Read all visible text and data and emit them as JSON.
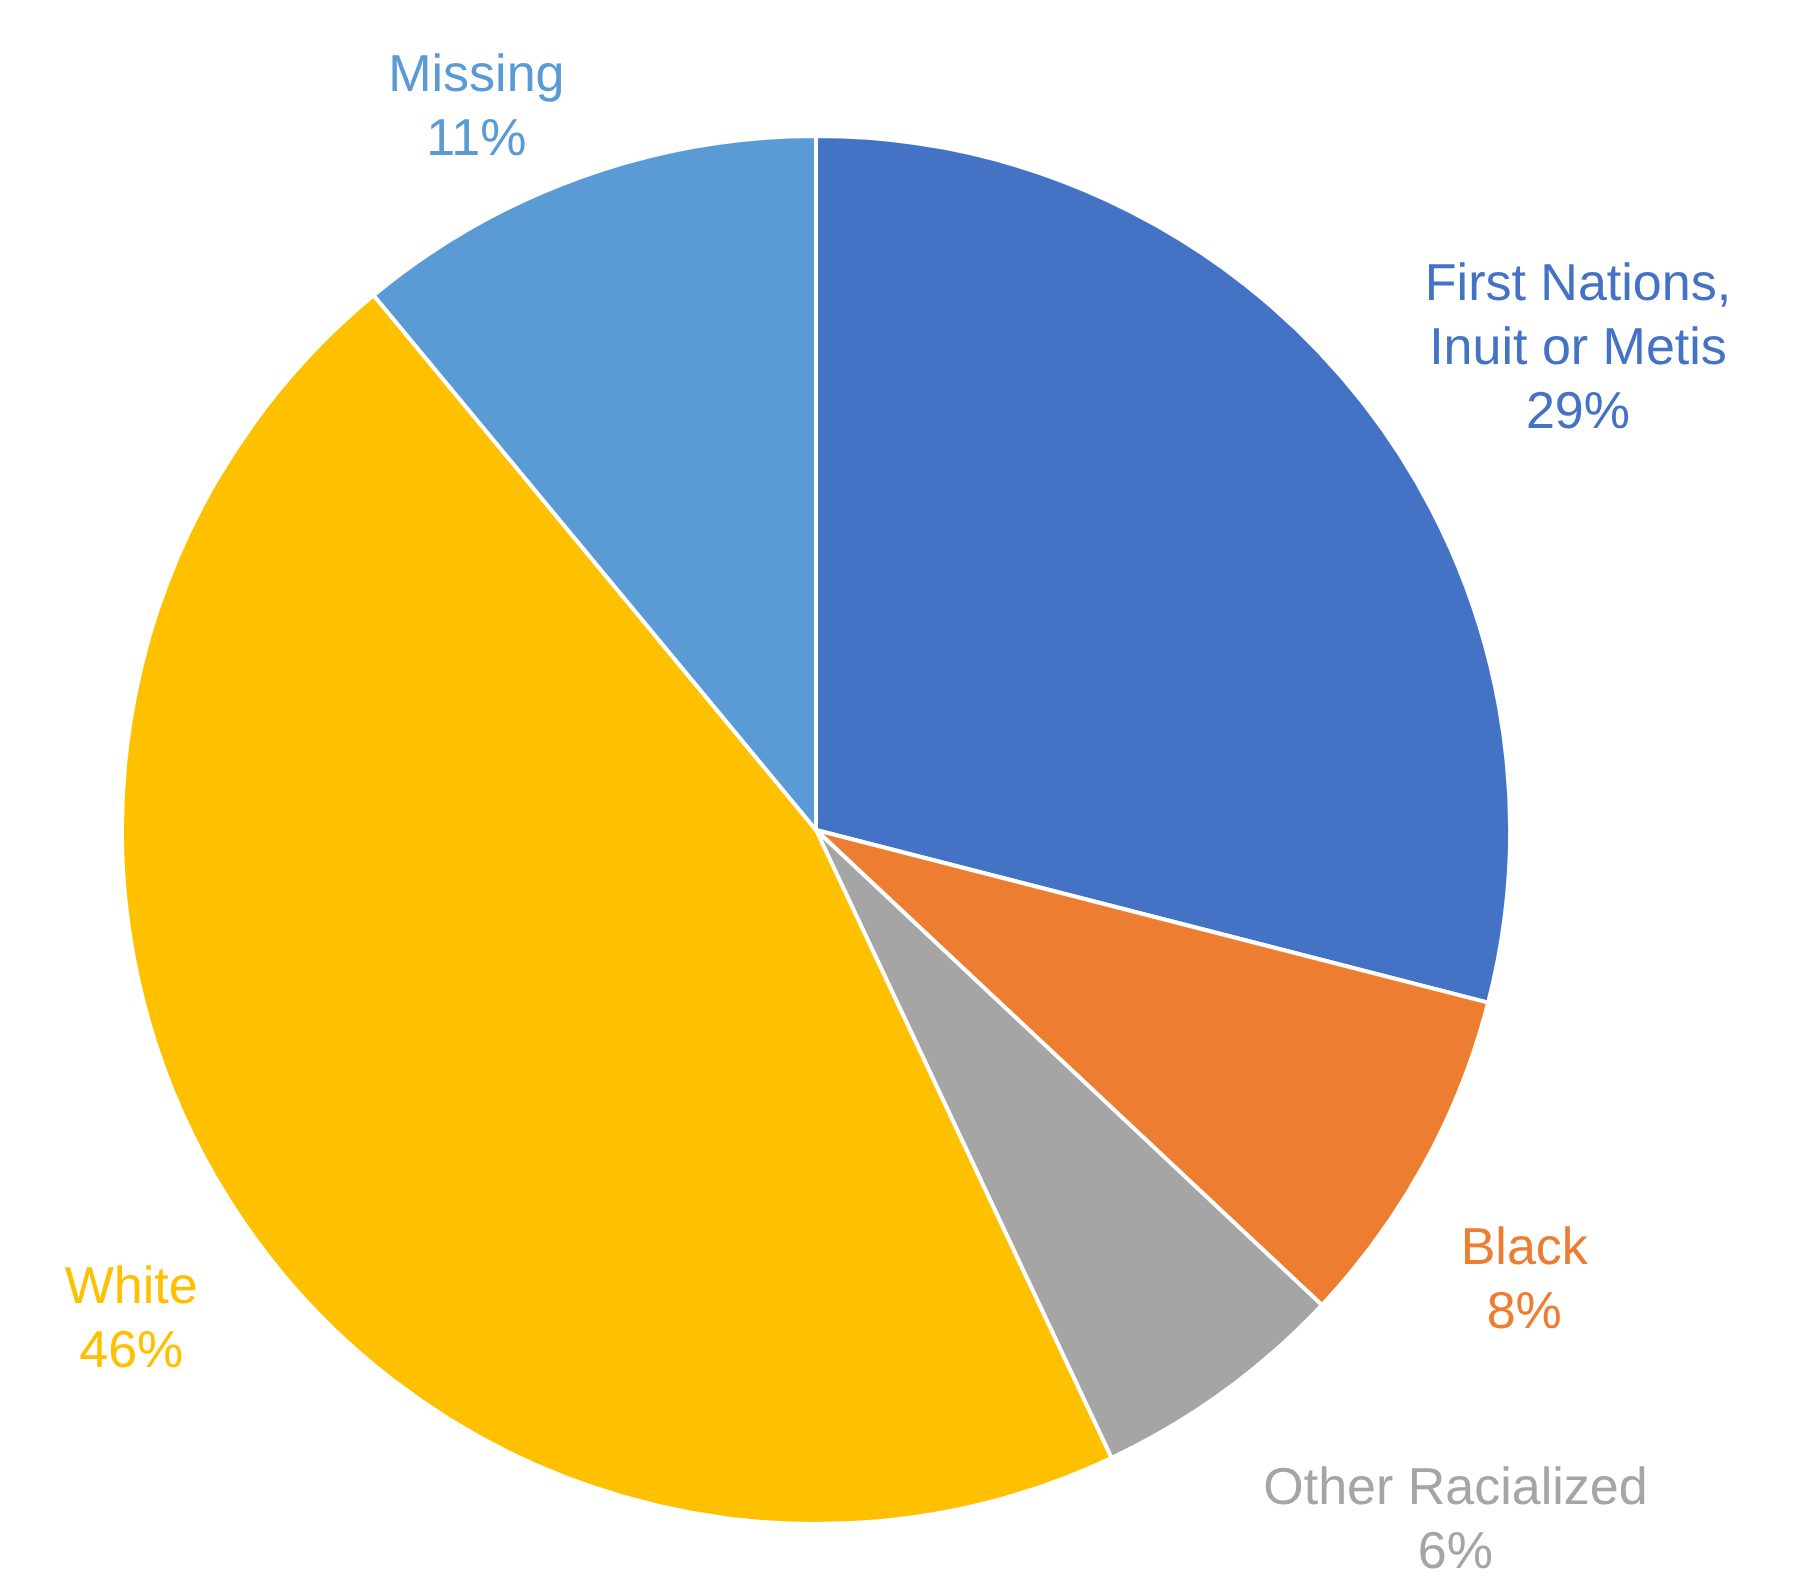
{
  "chart_data": {
    "type": "pie",
    "categories": [
      "First Nations, Inuit or Metis",
      "Black",
      "Other Racialized",
      "White",
      "Missing"
    ],
    "values": [
      29,
      8,
      6,
      46,
      11
    ],
    "colors": [
      "#4472c4",
      "#ed7d31",
      "#a5a5a5",
      "#ffc000",
      "#5b9bd5"
    ],
    "value_labels": [
      "29%",
      "8%",
      "6%",
      "46%",
      "11%"
    ]
  }
}
